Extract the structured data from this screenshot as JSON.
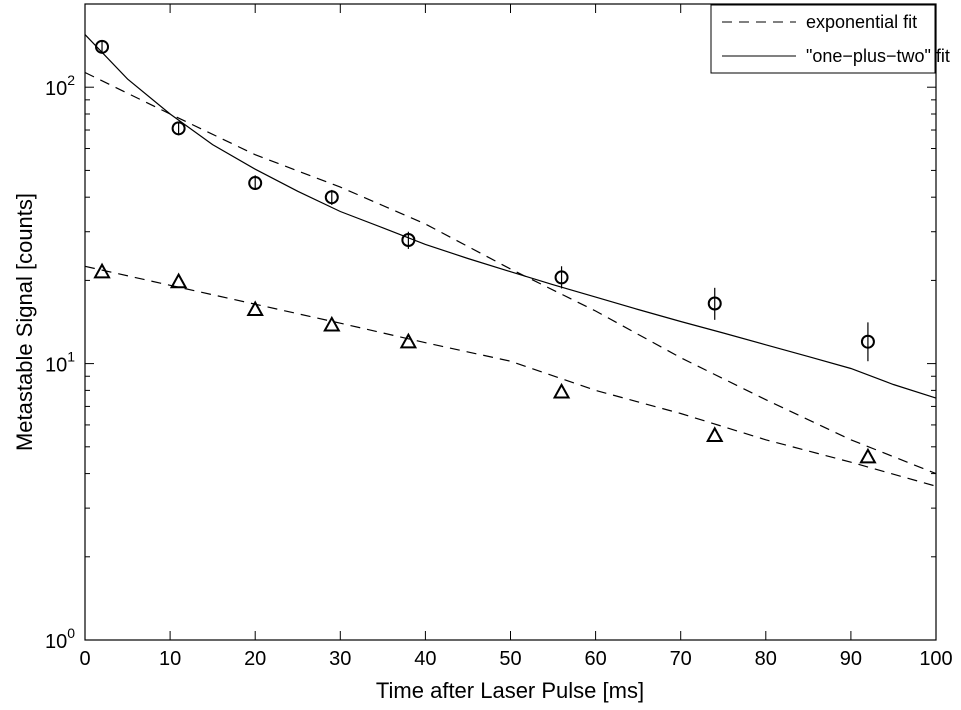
{
  "chart_data": {
    "type": "scatter",
    "title": "",
    "xlabel": "Time after Laser Pulse [ms]",
    "ylabel": "Metastable Signal [counts]",
    "xlim": [
      0,
      100
    ],
    "ylim": [
      1,
      200
    ],
    "yscale": "log",
    "grid": false,
    "legend_position": "top-right",
    "x_ticks": [
      0,
      10,
      20,
      30,
      40,
      50,
      60,
      70,
      80,
      90,
      100
    ],
    "x_tick_labels": [
      "0",
      "10",
      "20",
      "30",
      "40",
      "50",
      "60",
      "70",
      "80",
      "90",
      "100"
    ],
    "y_ticks": [
      {
        "value": 1,
        "base": "10",
        "exp": "0"
      },
      {
        "value": 10,
        "base": "10",
        "exp": "1"
      },
      {
        "value": 100,
        "base": "10",
        "exp": "2"
      }
    ],
    "legend": [
      {
        "label": "exponential fit",
        "style": "dashed"
      },
      {
        "label": "\"one−plus−two\" fit",
        "style": "solid"
      }
    ],
    "series": [
      {
        "marker": "circle",
        "x": [
          2,
          11,
          20,
          29,
          38,
          56,
          74,
          92
        ],
        "y": [
          140,
          71,
          45,
          40,
          28,
          20.5,
          16.5,
          12
        ],
        "yerr_low": [
          133,
          67,
          42.5,
          37.5,
          26,
          18.7,
          14.4,
          10.2
        ],
        "yerr_high": [
          147,
          75,
          48,
          42.5,
          30,
          22.5,
          18.8,
          14.1
        ]
      },
      {
        "marker": "triangle",
        "x": [
          2,
          11,
          20,
          29,
          38,
          56,
          74,
          92
        ],
        "y": [
          21.5,
          19.8,
          15.7,
          13.8,
          12,
          7.9,
          5.5,
          4.6
        ]
      }
    ],
    "fits": [
      {
        "label": "exponential fit",
        "style": "dashed",
        "x": [
          0,
          10,
          20,
          30,
          40,
          50,
          60,
          70,
          80,
          90,
          100
        ],
        "y": [
          113,
          80,
          57,
          43.5,
          32,
          22,
          15.5,
          10.5,
          7.4,
          5.3,
          4
        ]
      },
      {
        "label": "\"one−plus−two\" fit",
        "style": "solid",
        "x": [
          0,
          5,
          10,
          15,
          20,
          25,
          30,
          35,
          40,
          45,
          50,
          55,
          60,
          65,
          70,
          75,
          80,
          85,
          90,
          95,
          100
        ],
        "y": [
          155,
          107,
          80,
          62,
          50.5,
          42,
          35.5,
          31,
          27,
          24,
          21.5,
          19.3,
          17.4,
          15.7,
          14.2,
          12.9,
          11.7,
          10.6,
          9.6,
          8.4,
          7.5
        ]
      },
      {
        "label": "",
        "style": "dashed",
        "x": [
          0,
          10,
          20,
          30,
          40,
          50,
          60,
          70,
          80,
          90,
          100
        ],
        "y": [
          22.5,
          19.2,
          16.4,
          14,
          11.9,
          10.2,
          8,
          6.6,
          5.3,
          4.4,
          3.6
        ]
      }
    ]
  }
}
